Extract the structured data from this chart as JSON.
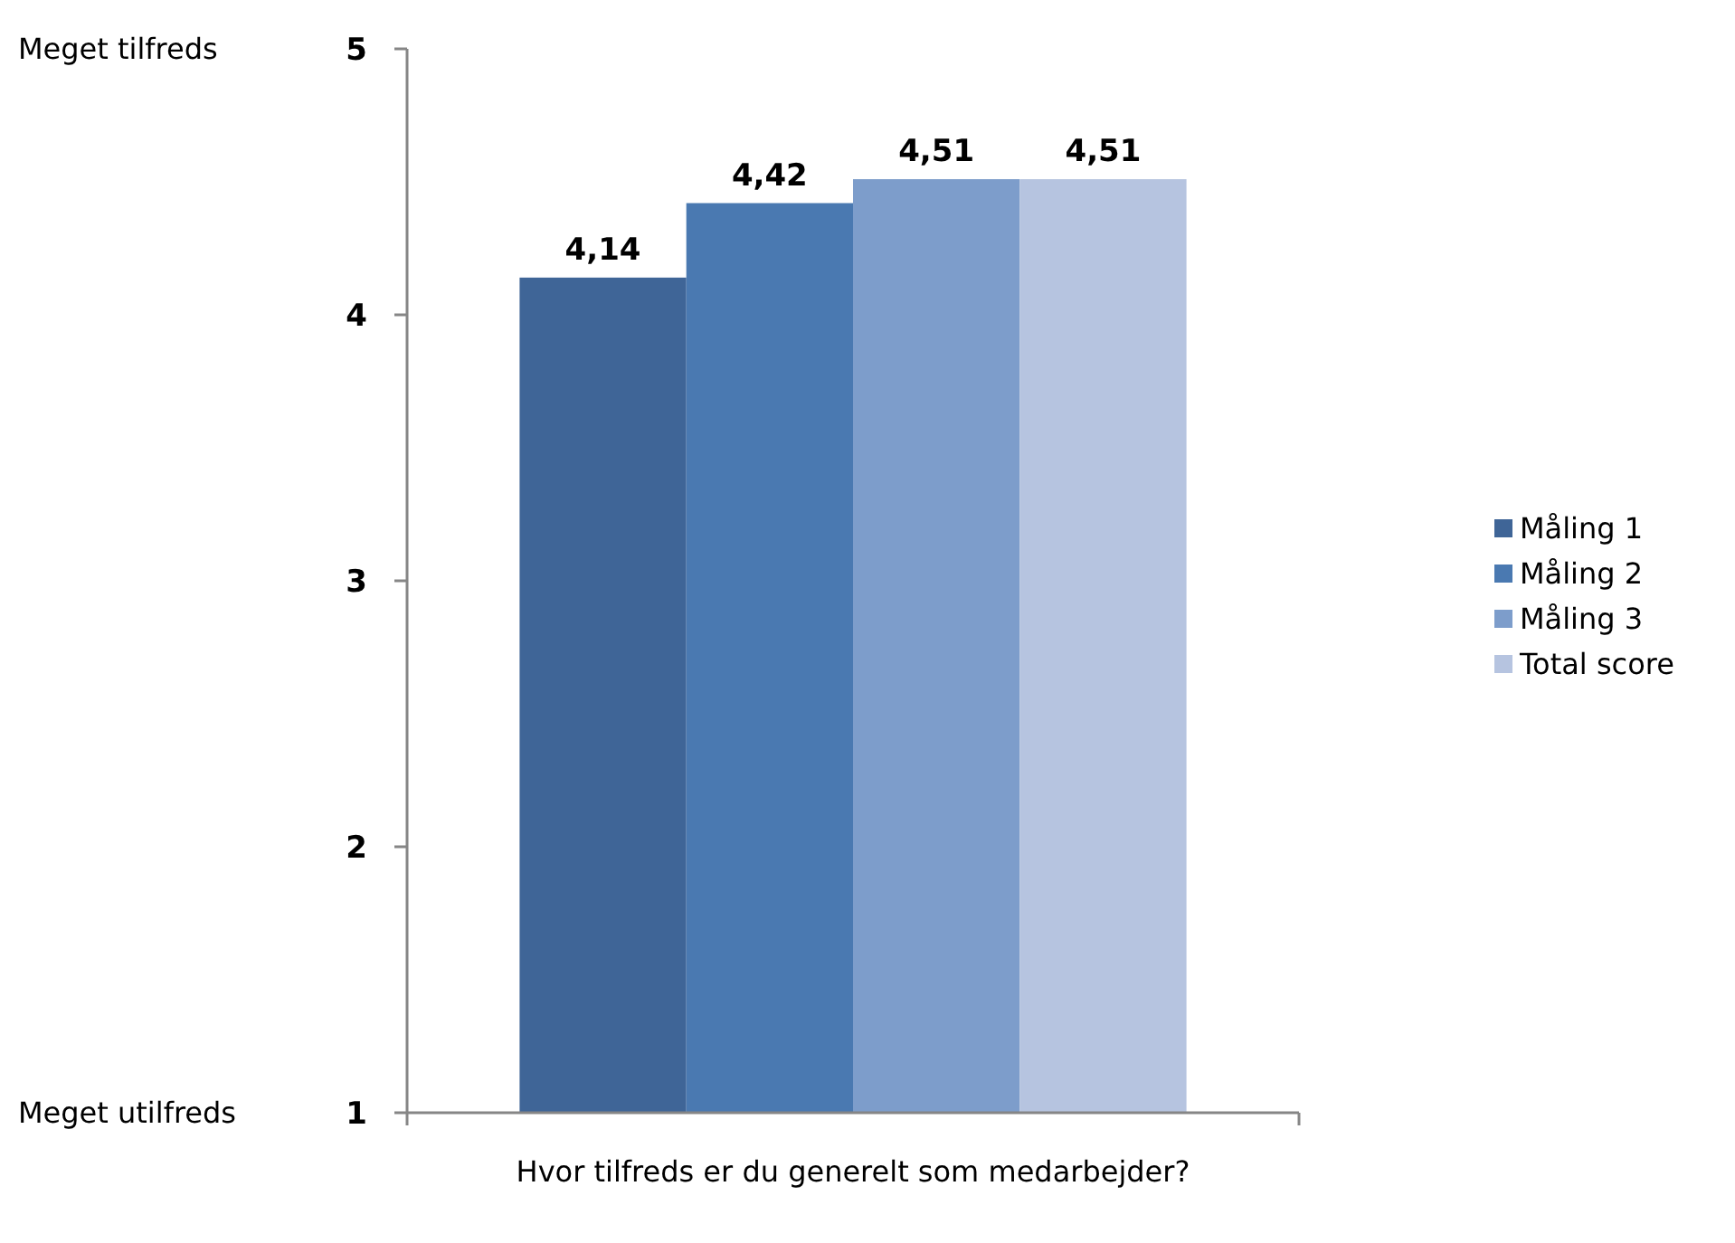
{
  "chart_data": {
    "type": "bar",
    "categories": [
      "Hvor tilfreds er du generelt som medarbejder?"
    ],
    "series": [
      {
        "name": "Måling 1",
        "color": "#3f6597",
        "values": [
          4.14
        ],
        "value_labels": [
          "4,14"
        ]
      },
      {
        "name": "Måling 2",
        "color": "#4a79b1",
        "values": [
          4.42
        ],
        "value_labels": [
          "4,42"
        ]
      },
      {
        "name": "Måling 3",
        "color": "#7d9dcb",
        "values": [
          4.51
        ],
        "value_labels": [
          "4,51"
        ]
      },
      {
        "name": "Total score",
        "color": "#b6c4e0",
        "values": [
          4.51
        ],
        "value_labels": [
          "4,51"
        ]
      }
    ],
    "ylim": [
      1,
      5
    ],
    "yticks": [
      1,
      2,
      3,
      4,
      5
    ],
    "grid": false,
    "legend": "right",
    "annotations": [
      "Meget tilfreds",
      "Meget utilfreds"
    ]
  }
}
